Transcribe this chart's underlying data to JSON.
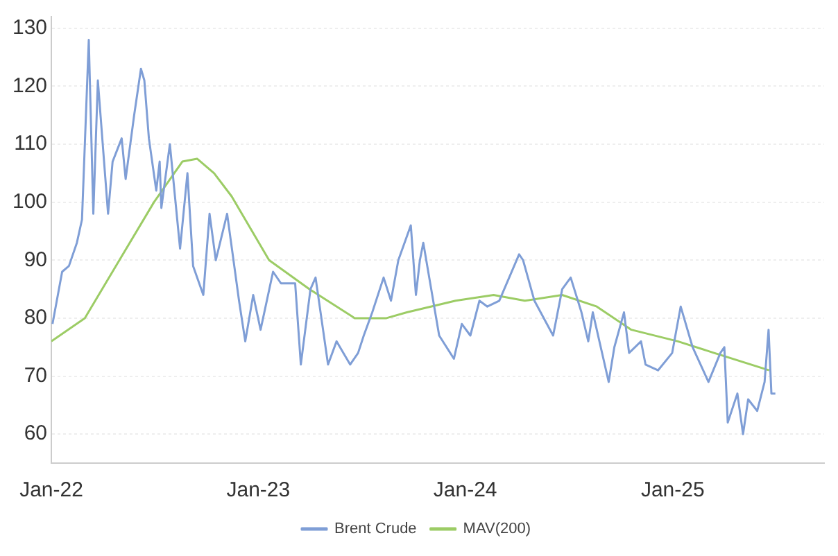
{
  "chart_data": {
    "type": "line",
    "legend": "bottom",
    "grid": "y",
    "marker": "none",
    "line_style": "solid",
    "xlim": [
      "2022-01-01",
      "2025-09-25"
    ],
    "ylim": [
      55,
      132
    ],
    "xticks": [
      {
        "value": "2022-01-01",
        "label": "Jan-22"
      },
      {
        "value": "2023-01-01",
        "label": "Jan-23"
      },
      {
        "value": "2024-01-01",
        "label": "Jan-24"
      },
      {
        "value": "2025-01-01",
        "label": "Jan-25"
      }
    ],
    "yticks": [
      60,
      70,
      80,
      90,
      100,
      110,
      120,
      130
    ],
    "series": [
      {
        "name": "Brent Crude",
        "color": "#7f9ed6",
        "x": [
          "2022-01-03",
          "2022-01-20",
          "2022-02-01",
          "2022-02-15",
          "2022-02-24",
          "2022-03-08",
          "2022-03-16",
          "2022-03-24",
          "2022-04-11",
          "2022-04-19",
          "2022-05-05",
          "2022-05-12",
          "2022-05-27",
          "2022-06-08",
          "2022-06-14",
          "2022-06-22",
          "2022-07-05",
          "2022-07-11",
          "2022-07-14",
          "2022-07-29",
          "2022-08-16",
          "2022-08-29",
          "2022-09-08",
          "2022-09-26",
          "2022-10-07",
          "2022-10-18",
          "2022-11-07",
          "2022-11-28",
          "2022-12-09",
          "2022-12-23",
          "2023-01-05",
          "2023-01-27",
          "2023-02-10",
          "2023-03-07",
          "2023-03-17",
          "2023-04-03",
          "2023-04-12",
          "2023-05-04",
          "2023-05-19",
          "2023-06-12",
          "2023-06-26",
          "2023-07-06",
          "2023-07-21",
          "2023-08-10",
          "2023-08-23",
          "2023-09-05",
          "2023-09-27",
          "2023-10-06",
          "2023-10-13",
          "2023-10-19",
          "2023-11-16",
          "2023-12-12",
          "2023-12-26",
          "2024-01-10",
          "2024-01-26",
          "2024-02-09",
          "2024-03-01",
          "2024-04-05",
          "2024-04-12",
          "2024-05-02",
          "2024-06-04",
          "2024-06-20",
          "2024-07-05",
          "2024-07-24",
          "2024-08-05",
          "2024-08-13",
          "2024-09-10",
          "2024-09-20",
          "2024-10-07",
          "2024-10-16",
          "2024-11-06",
          "2024-11-14",
          "2024-12-06",
          "2024-12-31",
          "2025-01-15",
          "2025-02-05",
          "2025-03-05",
          "2025-03-26",
          "2025-04-02",
          "2025-04-08",
          "2025-04-25",
          "2025-05-05",
          "2025-05-14",
          "2025-05-30",
          "2025-06-12",
          "2025-06-19",
          "2025-06-24",
          "2025-07-01"
        ],
        "values": [
          79,
          88,
          89,
          93,
          97,
          128,
          98,
          121,
          98,
          107,
          111,
          104,
          115,
          123,
          121,
          111,
          102,
          107,
          99,
          110,
          92,
          105,
          89,
          84,
          98,
          90,
          98,
          83,
          76,
          84,
          78,
          88,
          86,
          86,
          72,
          85,
          87,
          72,
          76,
          72,
          74,
          77,
          81,
          87,
          83,
          90,
          96,
          84,
          90,
          93,
          77,
          73,
          79,
          77,
          83,
          82,
          83,
          91,
          90,
          83,
          77,
          85,
          87,
          81,
          76,
          81,
          69,
          75,
          81,
          74,
          76,
          72,
          71,
          74,
          82,
          75,
          69,
          74,
          75,
          62,
          67,
          60,
          66,
          64,
          69,
          78,
          67,
          67
        ]
      },
      {
        "name": "MAV(200)",
        "color": "#9ccc65",
        "x": [
          "2022-01-01",
          "2022-03-01",
          "2022-05-01",
          "2022-07-01",
          "2022-08-20",
          "2022-09-15",
          "2022-10-15",
          "2022-11-15",
          "2023-01-20",
          "2023-04-01",
          "2023-06-20",
          "2023-08-15",
          "2023-09-20",
          "2023-12-15",
          "2024-02-20",
          "2024-04-15",
          "2024-06-20",
          "2024-08-20",
          "2024-10-20",
          "2025-01-10",
          "2025-03-15",
          "2025-06-20"
        ],
        "values": [
          76,
          80,
          90,
          100,
          107,
          107.5,
          105,
          101,
          90,
          85,
          80,
          80,
          81,
          83,
          84,
          83,
          84,
          82,
          78,
          76,
          74,
          71
        ]
      }
    ]
  }
}
